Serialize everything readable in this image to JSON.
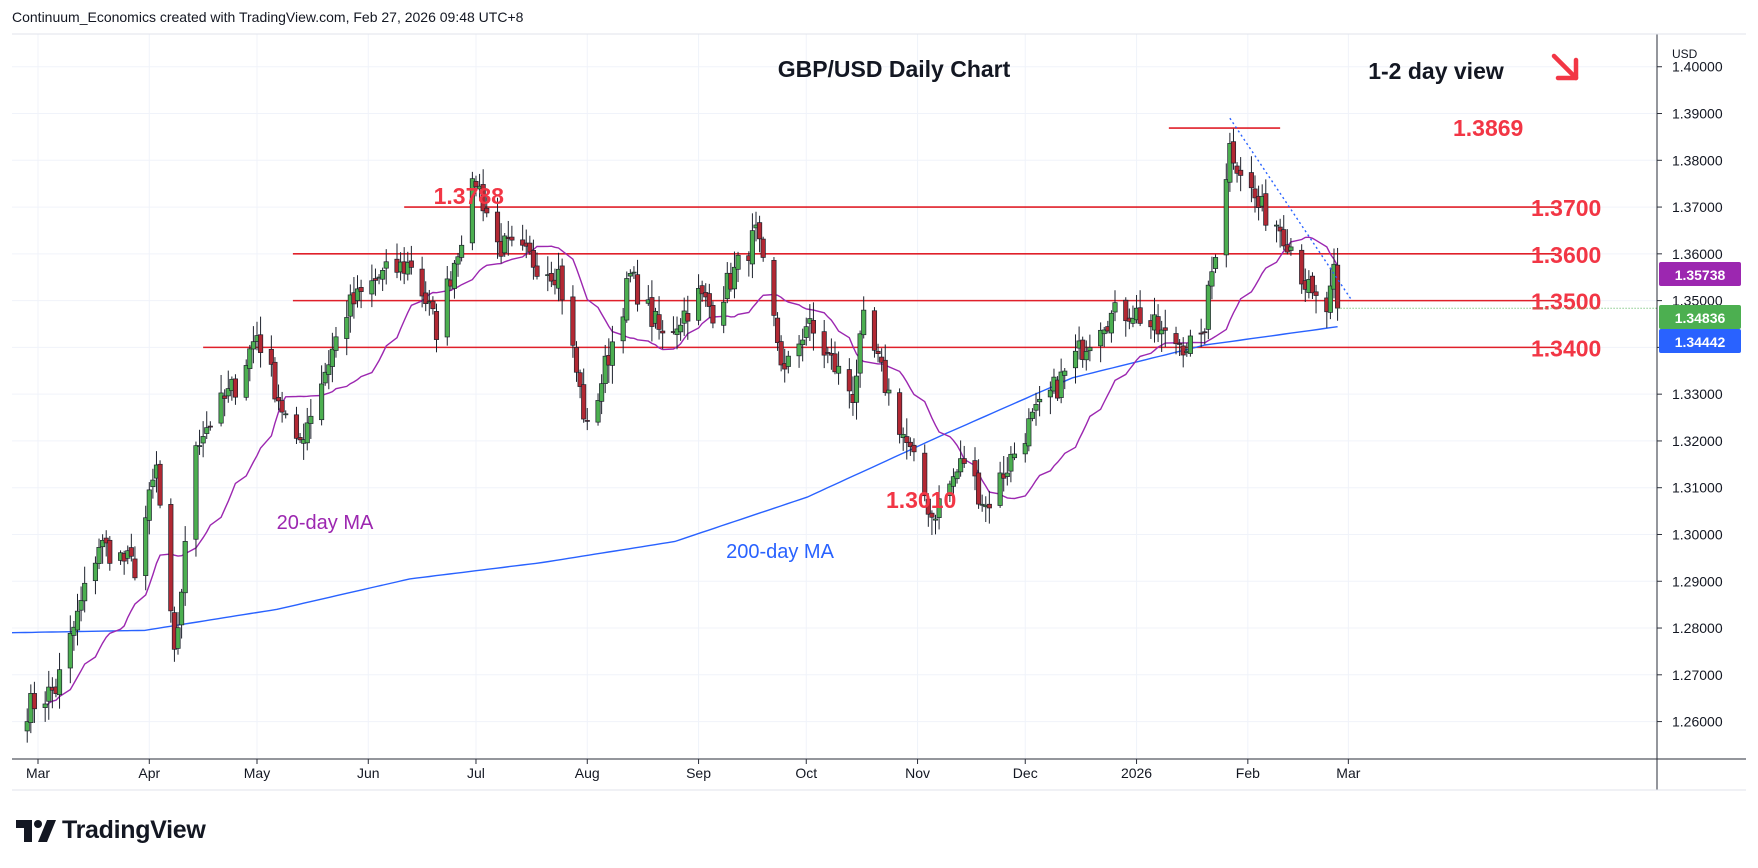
{
  "header": {
    "credit": "Continuum_Economics created with TradingView.com, Feb 27, 2026 09:48 UTC+8"
  },
  "branding": {
    "logo_text": "TradingView"
  },
  "colors": {
    "up": "#4caf50",
    "down": "#b22833",
    "ma20": "#9c27b0",
    "ma200": "#2962ff",
    "level": "#e0202a",
    "annotation_red": "#f23645",
    "grid": "#f0f3fa",
    "badge_last": "#4caf50",
    "badge_ma20": "#9c27b0",
    "badge_ma200": "#2962ff"
  },
  "chart_data": {
    "type": "candlestick",
    "title": "GBP/USD Daily Chart",
    "view": {
      "text": "1-2 day view",
      "direction": "down",
      "icon": "arrow-down-right-icon"
    },
    "currency": "USD",
    "ylim": [
      1.252,
      1.407
    ],
    "y_ticks": [
      "1.26000",
      "1.27000",
      "1.28000",
      "1.29000",
      "1.30000",
      "1.31000",
      "1.32000",
      "1.33000",
      "1.34000",
      "1.35000",
      "1.36000",
      "1.37000",
      "1.38000",
      "1.39000",
      "1.40000"
    ],
    "x_ticks": [
      "Mar",
      "Apr",
      "May",
      "Jun",
      "Jul",
      "Aug",
      "Sep",
      "Oct",
      "Nov",
      "Dec",
      "2026",
      "Feb",
      "Mar"
    ],
    "levels": [
      {
        "value": 1.37,
        "label": "1.3700"
      },
      {
        "value": 1.36,
        "label": "1.3600"
      },
      {
        "value": 1.35,
        "label": "1.3500"
      },
      {
        "value": 1.34,
        "label": "1.3400"
      }
    ],
    "annotations": [
      {
        "label": "1.3788",
        "value": 1.3788
      },
      {
        "label": "1.3869",
        "value": 1.3869
      },
      {
        "label": "1.3010",
        "value": 1.301
      },
      {
        "label": "20-day MA",
        "series": "ma20"
      },
      {
        "label": "200-day MA",
        "series": "ma200"
      }
    ],
    "price_badges": [
      {
        "label": "1.35738",
        "value": 1.35738,
        "series": "ma20"
      },
      {
        "label": "1.34836",
        "value": 1.34836,
        "series": "last"
      },
      {
        "label": "1.34442",
        "value": 1.34442,
        "series": "ma200"
      }
    ],
    "trendline": {
      "from": [
        "2026-01-27",
        1.389
      ],
      "to": [
        "2026-03-02",
        1.35
      ],
      "style": "dotted"
    },
    "anchors": [
      [
        "2025-02-26",
        1.263
      ],
      [
        "2025-03-06",
        1.267
      ],
      [
        "2025-03-18",
        1.298
      ],
      [
        "2025-03-28",
        1.293
      ],
      [
        "2025-04-03",
        1.314
      ],
      [
        "2025-04-08",
        1.273
      ],
      [
        "2025-04-14",
        1.32
      ],
      [
        "2025-04-25",
        1.332
      ],
      [
        "2025-05-01",
        1.343
      ],
      [
        "2025-05-12",
        1.318
      ],
      [
        "2025-05-26",
        1.348
      ],
      [
        "2025-06-04",
        1.355
      ],
      [
        "2025-06-13",
        1.358
      ],
      [
        "2025-06-20",
        1.344
      ],
      [
        "2025-07-01",
        1.376
      ],
      [
        "2025-07-07",
        1.362
      ],
      [
        "2025-07-24",
        1.356
      ],
      [
        "2025-08-01",
        1.322
      ],
      [
        "2025-08-13",
        1.355
      ],
      [
        "2025-08-22",
        1.342
      ],
      [
        "2025-09-01",
        1.351
      ],
      [
        "2025-09-05",
        1.348
      ],
      [
        "2025-09-17",
        1.364
      ],
      [
        "2025-09-25",
        1.334
      ],
      [
        "2025-10-01",
        1.345
      ],
      [
        "2025-10-14",
        1.33
      ],
      [
        "2025-10-17",
        1.345
      ],
      [
        "2025-10-31",
        1.315
      ],
      [
        "2025-11-05",
        1.304
      ],
      [
        "2025-11-14",
        1.316
      ],
      [
        "2025-11-20",
        1.306
      ],
      [
        "2025-12-01",
        1.322
      ],
      [
        "2025-12-10",
        1.332
      ],
      [
        "2025-12-22",
        1.346
      ],
      [
        "2025-12-31",
        1.348
      ],
      [
        "2026-01-09",
        1.342
      ],
      [
        "2026-01-19",
        1.34
      ],
      [
        "2026-01-27",
        1.383
      ],
      [
        "2026-02-04",
        1.37
      ],
      [
        "2026-02-10",
        1.366
      ],
      [
        "2026-02-13",
        1.362
      ],
      [
        "2026-02-19",
        1.35
      ],
      [
        "2026-02-23",
        1.348
      ],
      [
        "2026-02-24",
        1.351
      ],
      [
        "2026-02-25",
        1.355
      ],
      [
        "2026-02-26",
        1.3484
      ]
    ],
    "ma20_last": 1.35738,
    "ma200_first": 1.279,
    "ma200_last": 1.34442
  }
}
